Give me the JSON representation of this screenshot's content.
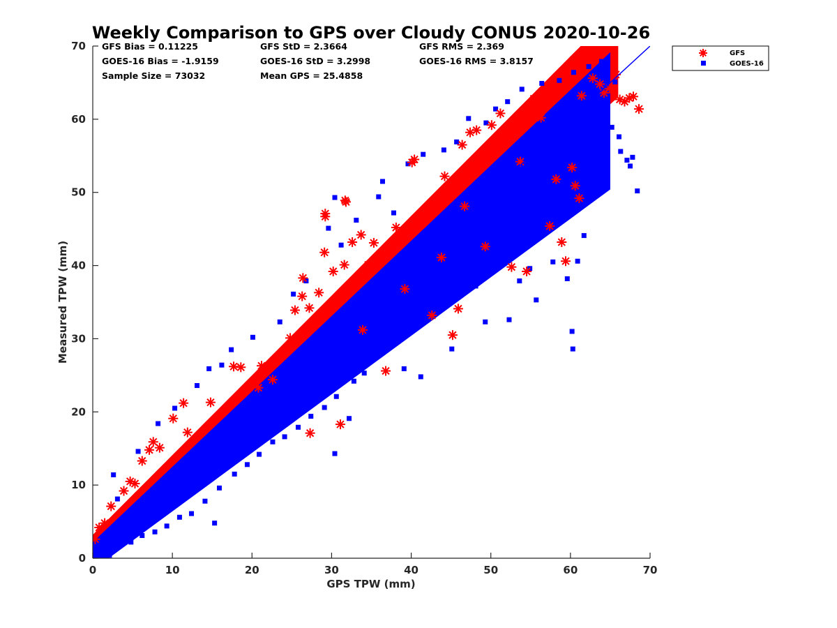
{
  "chart_data": {
    "type": "scatter",
    "title": "Weekly Comparison to GPS over Cloudy CONUS 2020-10-26",
    "xlabel": "GPS TPW (mm)",
    "ylabel": "Measured TPW (mm)",
    "xlim": [
      0,
      70
    ],
    "ylim": [
      0,
      70
    ],
    "xticks": [
      "0",
      "10",
      "20",
      "30",
      "40",
      "50",
      "60",
      "70"
    ],
    "yticks": [
      "0",
      "10",
      "20",
      "30",
      "40",
      "50",
      "60",
      "70"
    ],
    "grid": false,
    "legend_position": "outside-top-right",
    "stats": [
      [
        "GFS Bias = 0.11225",
        "GFS StD = 2.3664",
        "GFS RMS = 2.369"
      ],
      [
        "GOES-16 Bias = -1.9159",
        "GOES-16 StD = 3.2998",
        "GOES-16 RMS = 3.8157"
      ],
      [
        "Sample Size = 73032",
        "Mean GPS = 25.4858",
        ""
      ]
    ],
    "reference_line": {
      "x": [
        0,
        70
      ],
      "y": [
        0,
        70
      ],
      "color": "#0000ff"
    },
    "series": [
      {
        "name": "GFS",
        "marker": "asterisk",
        "color": "#ff0000",
        "points": [
          [
            0.3,
            2.6
          ],
          [
            0.8,
            4.2
          ],
          [
            1.5,
            4.8
          ],
          [
            2.3,
            7.1
          ],
          [
            3.9,
            9.2
          ],
          [
            4.7,
            10.5
          ],
          [
            5.3,
            10.2
          ],
          [
            6.2,
            13.3
          ],
          [
            7.1,
            14.8
          ],
          [
            7.6,
            15.9
          ],
          [
            8.4,
            15.1
          ],
          [
            10.1,
            19.1
          ],
          [
            11.4,
            21.2
          ],
          [
            11.9,
            17.2
          ],
          [
            14.8,
            21.3
          ],
          [
            17.7,
            26.2
          ],
          [
            18.6,
            26.1
          ],
          [
            20.8,
            23.3
          ],
          [
            21.2,
            26.3
          ],
          [
            22.6,
            24.4
          ],
          [
            24.8,
            30.1
          ],
          [
            25.4,
            33.9
          ],
          [
            26.3,
            35.8
          ],
          [
            26.4,
            38.3
          ],
          [
            27.3,
            17.1
          ],
          [
            27.2,
            34.2
          ],
          [
            28.4,
            36.3
          ],
          [
            29.1,
            41.8
          ],
          [
            29.2,
            46.7
          ],
          [
            29.2,
            47.1
          ],
          [
            30.2,
            39.2
          ],
          [
            31.1,
            18.3
          ],
          [
            31.6,
            40.1
          ],
          [
            31.7,
            48.9
          ],
          [
            31.8,
            48.7
          ],
          [
            32.6,
            43.2
          ],
          [
            33.7,
            44.2
          ],
          [
            33.9,
            31.2
          ],
          [
            34.6,
            40.1
          ],
          [
            35.3,
            43.1
          ],
          [
            36.8,
            25.6
          ],
          [
            38.1,
            45.2
          ],
          [
            39.2,
            36.8
          ],
          [
            40.1,
            54.1
          ],
          [
            40.4,
            54.5
          ],
          [
            42.6,
            33.2
          ],
          [
            43.8,
            41.1
          ],
          [
            44.2,
            52.2
          ],
          [
            45.2,
            30.5
          ],
          [
            45.9,
            34.1
          ],
          [
            46.4,
            56.5
          ],
          [
            46.7,
            48.1
          ],
          [
            47.4,
            58.2
          ],
          [
            48.2,
            58.5
          ],
          [
            49.3,
            42.6
          ],
          [
            50.1,
            59.2
          ],
          [
            51.2,
            60.8
          ],
          [
            52.6,
            39.8
          ],
          [
            53.7,
            54.2
          ],
          [
            54.5,
            39.2
          ],
          [
            55.4,
            62.8
          ],
          [
            56.1,
            62.7
          ],
          [
            56.3,
            60.2
          ],
          [
            57.4,
            45.4
          ],
          [
            58.2,
            51.8
          ],
          [
            58.9,
            43.2
          ],
          [
            59.4,
            40.6
          ],
          [
            60.2,
            53.4
          ],
          [
            60.6,
            50.9
          ],
          [
            61.1,
            49.2
          ],
          [
            61.4,
            63.2
          ],
          [
            62.8,
            65.6
          ],
          [
            63.7,
            64.8
          ],
          [
            64.2,
            63.6
          ],
          [
            64.9,
            64.2
          ],
          [
            65.7,
            66.1
          ],
          [
            66.2,
            62.7
          ],
          [
            66.8,
            62.4
          ],
          [
            67.4,
            62.9
          ],
          [
            67.9,
            63.1
          ],
          [
            68.6,
            61.4
          ]
        ]
      },
      {
        "name": "GOES-16",
        "marker": "square",
        "color": "#0000ff",
        "points": [
          [
            0.5,
            0.3
          ],
          [
            1.2,
            0.8
          ],
          [
            2.1,
            0.4
          ],
          [
            3.4,
            1.7
          ],
          [
            4.8,
            2.2
          ],
          [
            6.2,
            3.1
          ],
          [
            7.8,
            3.6
          ],
          [
            9.3,
            4.4
          ],
          [
            10.9,
            5.6
          ],
          [
            12.4,
            6.1
          ],
          [
            14.1,
            7.8
          ],
          [
            15.3,
            4.8
          ],
          [
            15.9,
            9.6
          ],
          [
            17.8,
            11.5
          ],
          [
            19.4,
            12.8
          ],
          [
            20.9,
            14.2
          ],
          [
            22.6,
            15.9
          ],
          [
            24.1,
            16.6
          ],
          [
            25.8,
            17.9
          ],
          [
            27.4,
            19.4
          ],
          [
            29.1,
            20.6
          ],
          [
            30.4,
            14.3
          ],
          [
            30.6,
            22.1
          ],
          [
            32.2,
            19.1
          ],
          [
            32.8,
            24.2
          ],
          [
            34.1,
            25.3
          ],
          [
            36.1,
            28.1
          ],
          [
            38.3,
            29.8
          ],
          [
            39.1,
            25.9
          ],
          [
            40.2,
            33.1
          ],
          [
            41.2,
            24.8
          ],
          [
            41.9,
            35.1
          ],
          [
            43.7,
            34.8
          ],
          [
            45.1,
            28.6
          ],
          [
            45.2,
            37.2
          ],
          [
            46.8,
            39.3
          ],
          [
            48.1,
            37.2
          ],
          [
            49.3,
            32.3
          ],
          [
            50.1,
            41.4
          ],
          [
            52.3,
            32.6
          ],
          [
            52.8,
            43.1
          ],
          [
            53.6,
            37.9
          ],
          [
            54.9,
            39.6
          ],
          [
            55.7,
            35.3
          ],
          [
            56.5,
            45.6
          ],
          [
            57.8,
            40.5
          ],
          [
            58.7,
            48.1
          ],
          [
            59.6,
            38.2
          ],
          [
            60.3,
            28.6
          ],
          [
            60.2,
            31.0
          ],
          [
            60.9,
            40.6
          ],
          [
            61.7,
            44.1
          ],
          [
            62.5,
            52.4
          ],
          [
            63.4,
            55.2
          ],
          [
            64.6,
            56.8
          ],
          [
            65.2,
            58.9
          ],
          [
            66.3,
            55.6
          ],
          [
            67.1,
            54.4
          ],
          [
            67.8,
            54.8
          ],
          [
            68.4,
            50.2
          ],
          [
            2.6,
            11.4
          ],
          [
            3.1,
            8.1
          ],
          [
            5.7,
            14.6
          ],
          [
            8.2,
            18.4
          ],
          [
            10.3,
            20.5
          ],
          [
            13.1,
            23.6
          ],
          [
            14.6,
            25.9
          ],
          [
            16.2,
            26.4
          ],
          [
            17.4,
            28.5
          ],
          [
            20.1,
            30.2
          ],
          [
            23.5,
            32.3
          ],
          [
            25.2,
            36.1
          ],
          [
            26.8,
            37.9
          ],
          [
            29.6,
            45.1
          ],
          [
            30.4,
            49.3
          ],
          [
            31.2,
            42.8
          ],
          [
            33.1,
            46.2
          ],
          [
            35.9,
            49.4
          ],
          [
            36.4,
            51.5
          ],
          [
            37.8,
            47.2
          ],
          [
            39.6,
            53.9
          ],
          [
            41.5,
            55.2
          ],
          [
            44.1,
            55.8
          ],
          [
            45.7,
            56.9
          ],
          [
            47.2,
            60.1
          ],
          [
            49.4,
            59.5
          ],
          [
            50.6,
            61.4
          ],
          [
            52.1,
            62.4
          ],
          [
            53.9,
            64.1
          ],
          [
            56.4,
            64.9
          ],
          [
            58.6,
            65.3
          ],
          [
            60.4,
            66.4
          ],
          [
            62.3,
            67.2
          ],
          [
            63.9,
            67.9
          ],
          [
            65.6,
            65.1
          ],
          [
            66.1,
            57.6
          ],
          [
            67.5,
            53.6
          ]
        ]
      }
    ]
  },
  "legend": {
    "items": [
      {
        "label": "GFS",
        "color": "#ff0000",
        "marker": "asterisk"
      },
      {
        "label": "GOES-16",
        "color": "#0000ff",
        "marker": "square"
      }
    ]
  }
}
